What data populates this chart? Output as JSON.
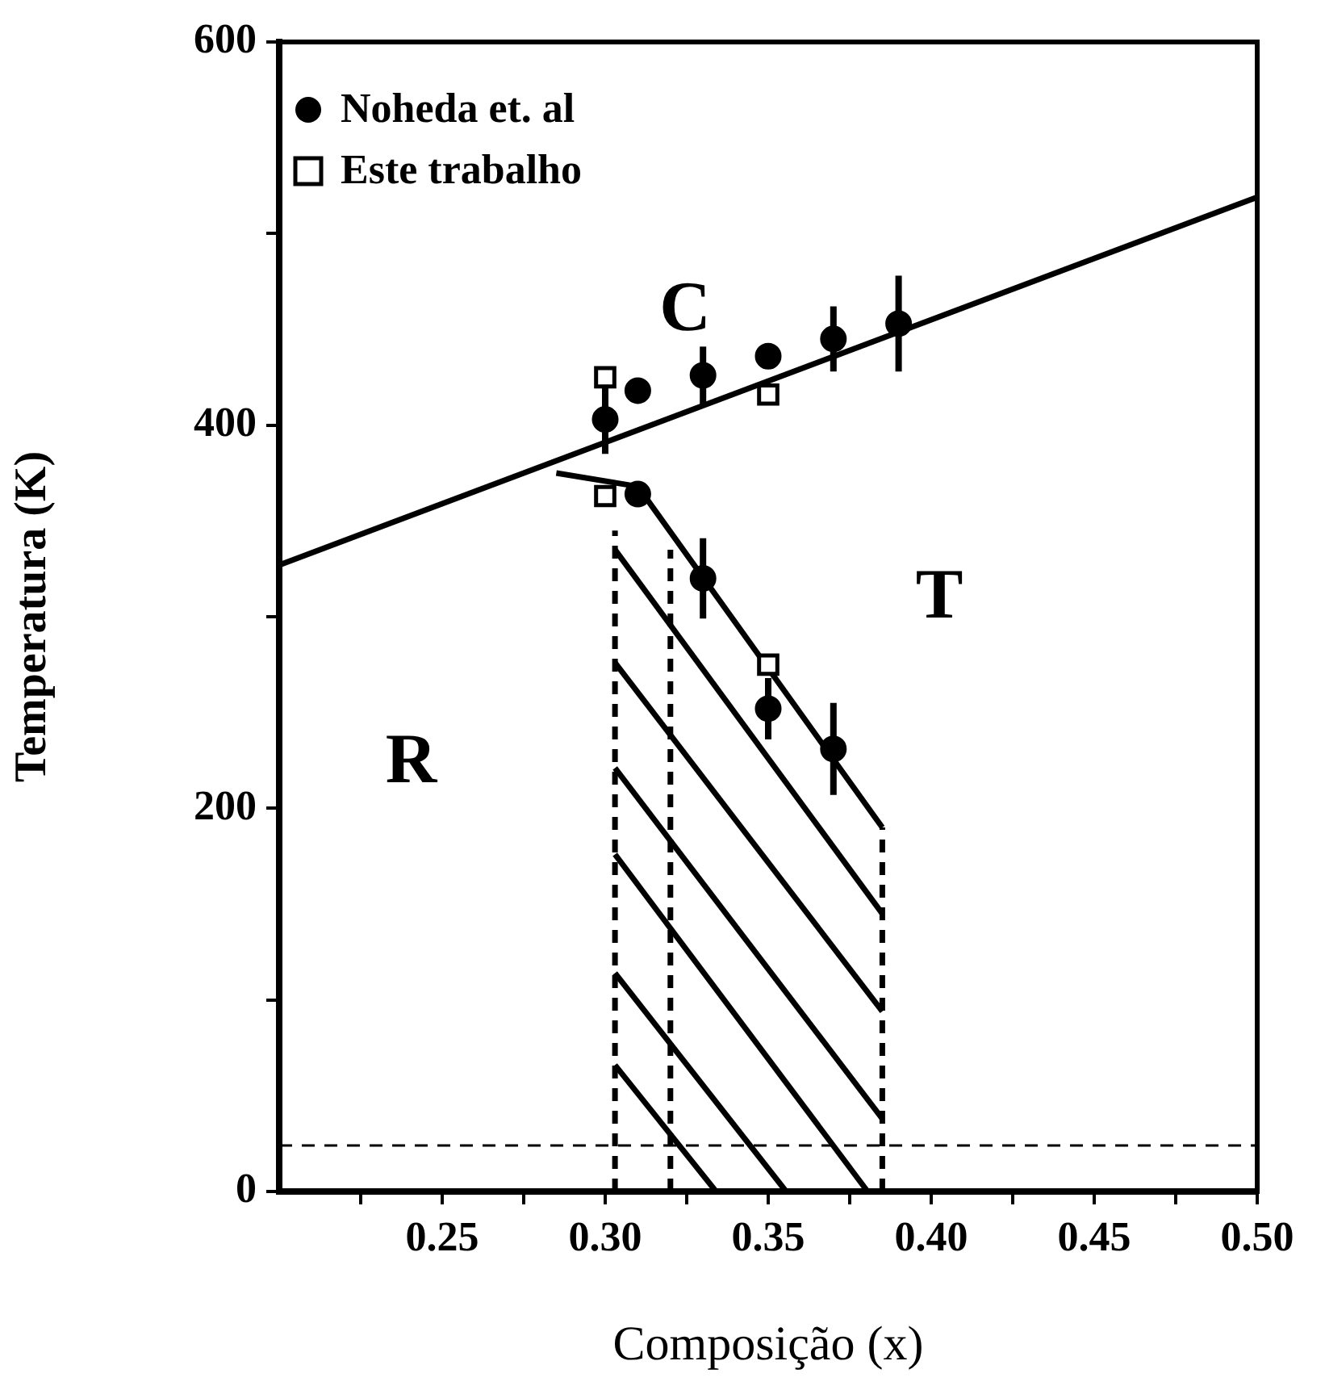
{
  "chart_data": {
    "type": "scatter",
    "xlabel": "Composição (x)",
    "ylabel": "Temperatura (K)",
    "xlim": [
      0.2,
      0.5
    ],
    "ylim": [
      0,
      600
    ],
    "xticks": [
      {
        "value": 0.225,
        "label": null
      },
      {
        "value": 0.25,
        "label": "0.25"
      },
      {
        "value": 0.275,
        "label": null
      },
      {
        "value": 0.3,
        "label": "0.30"
      },
      {
        "value": 0.325,
        "label": null
      },
      {
        "value": 0.35,
        "label": "0.35"
      },
      {
        "value": 0.375,
        "label": null
      },
      {
        "value": 0.4,
        "label": "0.40"
      },
      {
        "value": 0.425,
        "label": null
      },
      {
        "value": 0.45,
        "label": "0.45"
      },
      {
        "value": 0.475,
        "label": null
      },
      {
        "value": 0.5,
        "label": "0.50"
      }
    ],
    "yticks": [
      0,
      {
        "value": 100,
        "label": null
      },
      200,
      {
        "value": 300,
        "label": null
      },
      400,
      {
        "value": 500,
        "label": null
      },
      600
    ],
    "grid": false,
    "legend": "top left",
    "series": [
      {
        "name": "Noheda et. al",
        "type": "scatter",
        "marker": "circle",
        "color": "#000000",
        "x": [
          0.3,
          0.31,
          0.33,
          0.35,
          0.37,
          0.39,
          0.31,
          0.33,
          0.35,
          0.37
        ],
        "values": [
          403,
          418,
          426,
          436,
          445,
          453,
          364,
          320,
          252,
          231
        ],
        "errors": [
          18,
          null,
          15,
          null,
          17,
          25,
          null,
          21,
          16,
          24
        ]
      },
      {
        "name": "Este trabalho",
        "type": "scatter",
        "marker": "square",
        "color": "#000000",
        "x": [
          0.3,
          0.35,
          0.3,
          0.35
        ],
        "values": [
          425,
          416,
          363,
          275
        ]
      },
      {
        "type": "line",
        "marker": "none",
        "line_style": "solid",
        "color": "#000000",
        "x": [
          0.2,
          0.5
        ],
        "values": [
          327,
          519
        ]
      },
      {
        "type": "line",
        "marker": "none",
        "line_style": "solid",
        "color": "#000000",
        "x": [
          0.285,
          0.31,
          0.385
        ],
        "values": [
          375,
          368,
          190
        ]
      },
      {
        "type": "line",
        "marker": "none",
        "line_style": "dashed",
        "color": "#000000",
        "x": [
          0.303,
          0.303
        ],
        "values": [
          0,
          345
        ]
      },
      {
        "type": "line",
        "marker": "none",
        "line_style": "dashed",
        "color": "#000000",
        "x": [
          0.32,
          0.32
        ],
        "values": [
          0,
          335
        ]
      },
      {
        "type": "line",
        "marker": "none",
        "line_style": "dashed",
        "color": "#000000",
        "x": [
          0.385,
          0.385
        ],
        "values": [
          0,
          190
        ]
      },
      {
        "type": "line",
        "marker": "none",
        "line_style": "solid",
        "color": "#000000",
        "x": [
          0.303,
          0.385
        ],
        "values": [
          335,
          145
        ]
      },
      {
        "type": "line",
        "marker": "none",
        "line_style": "solid",
        "color": "#000000",
        "x": [
          0.303,
          0.385
        ],
        "values": [
          276,
          94
        ]
      },
      {
        "type": "line",
        "marker": "none",
        "line_style": "solid",
        "color": "#000000",
        "x": [
          0.303,
          0.385
        ],
        "values": [
          221,
          38
        ]
      },
      {
        "type": "line",
        "marker": "none",
        "line_style": "solid",
        "color": "#000000",
        "x": [
          0.303,
          0.3805
        ],
        "values": [
          176,
          0
        ]
      },
      {
        "type": "line",
        "marker": "none",
        "line_style": "solid",
        "color": "#000000",
        "x": [
          0.303,
          0.3555
        ],
        "values": [
          114,
          0
        ]
      },
      {
        "type": "line",
        "marker": "none",
        "line_style": "solid",
        "color": "#000000",
        "x": [
          0.303,
          0.334
        ],
        "values": [
          66,
          0
        ]
      }
    ],
    "ref_lines": [
      {
        "axis": "y",
        "value": 24,
        "line_style": "dashed",
        "color": "#000000"
      }
    ],
    "annotations": [
      "C",
      "T",
      "R"
    ]
  }
}
